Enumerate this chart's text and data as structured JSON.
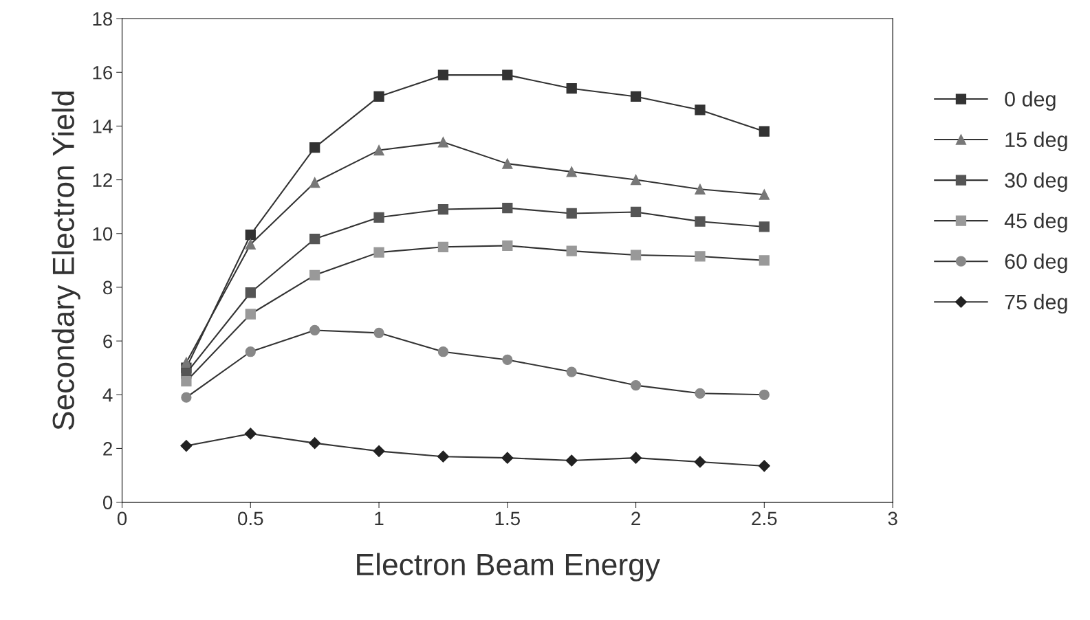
{
  "chart_data": {
    "type": "line",
    "xlabel": "Electron Beam Energy",
    "ylabel": "Secondary Electron Yield",
    "x": [
      0.25,
      0.5,
      0.75,
      1,
      1.25,
      1.5,
      1.75,
      2,
      2.25,
      2.5
    ],
    "series": [
      {
        "name": "0 deg",
        "color": "#333333",
        "marker": "square",
        "values": [
          5.0,
          9.95,
          13.2,
          15.1,
          15.9,
          15.9,
          15.4,
          15.1,
          14.6,
          13.8
        ]
      },
      {
        "name": "15 deg",
        "color": "#777777",
        "marker": "triangle",
        "values": [
          5.2,
          9.6,
          11.9,
          13.1,
          13.4,
          12.6,
          12.3,
          12.0,
          11.65,
          11.45
        ]
      },
      {
        "name": "30 deg",
        "color": "#555555",
        "marker": "square",
        "values": [
          4.8,
          7.8,
          9.8,
          10.6,
          10.9,
          10.95,
          10.75,
          10.8,
          10.45,
          10.25
        ]
      },
      {
        "name": "45 deg",
        "color": "#999999",
        "marker": "square",
        "values": [
          4.5,
          7.0,
          8.45,
          9.3,
          9.5,
          9.55,
          9.35,
          9.2,
          9.15,
          9.0
        ]
      },
      {
        "name": "60 deg",
        "color": "#888888",
        "marker": "circle",
        "values": [
          3.9,
          5.6,
          6.4,
          6.3,
          5.6,
          5.3,
          4.85,
          4.35,
          4.05,
          4.0
        ]
      },
      {
        "name": "75 deg",
        "color": "#222222",
        "marker": "diamond",
        "values": [
          2.1,
          2.55,
          2.2,
          1.9,
          1.7,
          1.65,
          1.55,
          1.65,
          1.5,
          1.35
        ]
      }
    ],
    "xlim": [
      0,
      3
    ],
    "xticks": [
      0,
      0.5,
      1,
      1.5,
      2,
      2.5,
      3
    ],
    "ylim": [
      0,
      18
    ],
    "yticks": [
      0,
      2,
      4,
      6,
      8,
      10,
      12,
      14,
      16,
      18
    ],
    "grid": false,
    "legend": "right",
    "line_style": "solid"
  }
}
